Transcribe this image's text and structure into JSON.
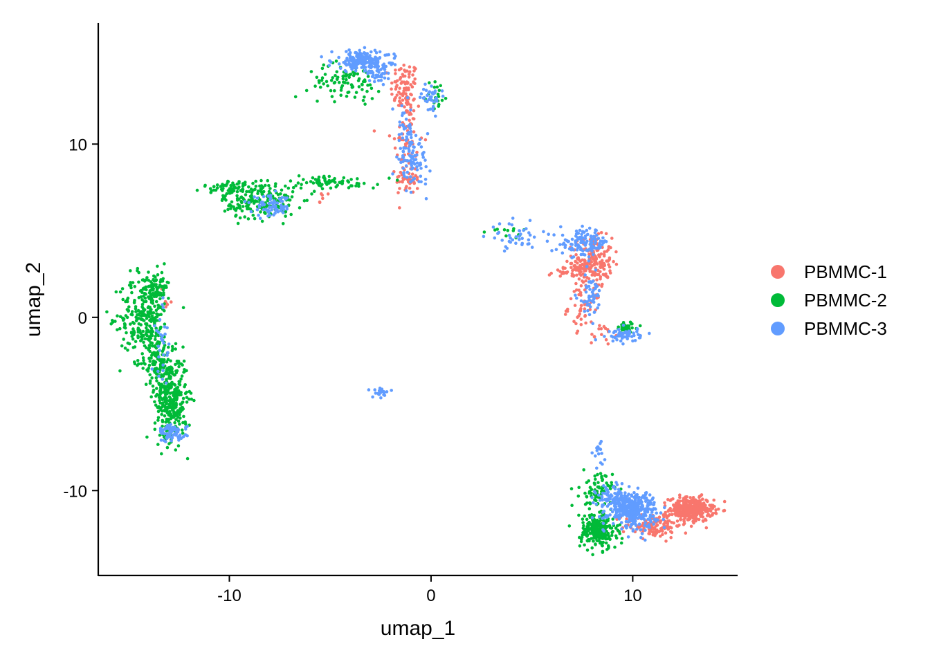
{
  "chart_data": {
    "type": "scatter",
    "title": "",
    "xlabel": "umap_1",
    "ylabel": "umap_2",
    "xlim": [
      -16.5,
      15.2
    ],
    "ylim": [
      -14.9,
      17.0
    ],
    "xticks": [
      {
        "value": -10,
        "label": "-10"
      },
      {
        "value": 0,
        "label": "0"
      },
      {
        "value": 10,
        "label": "10"
      }
    ],
    "yticks": [
      {
        "value": -10,
        "label": "-10"
      },
      {
        "value": 0,
        "label": "0"
      },
      {
        "value": 10,
        "label": "10"
      }
    ],
    "grid": false,
    "legend_position": "right",
    "series": [
      {
        "name": "PBMMC-1",
        "color": "#F8766D",
        "clusters": [
          {
            "cx": -1.3,
            "cy": 13.2,
            "sx": 0.35,
            "sy": 0.8,
            "n": 90
          },
          {
            "cx": -1.2,
            "cy": 10.0,
            "sx": 0.4,
            "sy": 1.6,
            "n": 60
          },
          {
            "cx": -1.1,
            "cy": 8.0,
            "sx": 0.3,
            "sy": 0.4,
            "n": 40
          },
          {
            "cx": 8.0,
            "cy": 3.2,
            "sx": 0.5,
            "sy": 0.7,
            "n": 180
          },
          {
            "cx": 7.0,
            "cy": 2.6,
            "sx": 0.6,
            "sy": 0.2,
            "n": 40
          },
          {
            "cx": 7.6,
            "cy": 0.6,
            "sx": 0.4,
            "sy": 0.6,
            "n": 50
          },
          {
            "cx": 12.9,
            "cy": -11.1,
            "sx": 0.55,
            "sy": 0.35,
            "n": 350
          },
          {
            "cx": 11.0,
            "cy": -12.0,
            "sx": 0.7,
            "sy": 0.35,
            "n": 130
          },
          {
            "cx": -13.1,
            "cy": 1.2,
            "sx": 0.2,
            "sy": 0.5,
            "n": 6
          },
          {
            "cx": -5.5,
            "cy": 7.0,
            "sx": 0.3,
            "sy": 0.3,
            "n": 6
          },
          {
            "cx": 8.5,
            "cy": -1.0,
            "sx": 0.3,
            "sy": 0.3,
            "n": 15
          }
        ]
      },
      {
        "name": "PBMMC-2",
        "color": "#00BA38",
        "clusters": [
          {
            "cx": -14.2,
            "cy": 0.0,
            "sx": 0.6,
            "sy": 1.3,
            "n": 280
          },
          {
            "cx": -13.5,
            "cy": 1.8,
            "sx": 0.25,
            "sy": 0.5,
            "n": 60
          },
          {
            "cx": -12.9,
            "cy": -4.7,
            "sx": 0.4,
            "sy": 1.2,
            "n": 360
          },
          {
            "cx": -13.6,
            "cy": -2.5,
            "sx": 0.3,
            "sy": 0.8,
            "n": 90
          },
          {
            "cx": -8.5,
            "cy": 6.6,
            "sx": 0.9,
            "sy": 0.45,
            "n": 180
          },
          {
            "cx": -9.5,
            "cy": 7.5,
            "sx": 0.9,
            "sy": 0.2,
            "n": 80
          },
          {
            "cx": -5.0,
            "cy": 7.8,
            "sx": 1.2,
            "sy": 0.2,
            "n": 70
          },
          {
            "cx": -4.3,
            "cy": 13.6,
            "sx": 0.9,
            "sy": 0.5,
            "n": 90
          },
          {
            "cx": 0.3,
            "cy": 12.8,
            "sx": 0.25,
            "sy": 0.5,
            "n": 20
          },
          {
            "cx": 8.3,
            "cy": -12.3,
            "sx": 0.45,
            "sy": 0.55,
            "n": 240
          },
          {
            "cx": 8.2,
            "cy": -10.0,
            "sx": 0.4,
            "sy": 0.5,
            "n": 70
          },
          {
            "cx": 9.7,
            "cy": -0.6,
            "sx": 0.3,
            "sy": 0.15,
            "n": 40
          },
          {
            "cx": 3.9,
            "cy": 5.0,
            "sx": 0.5,
            "sy": 0.2,
            "n": 12
          }
        ]
      },
      {
        "name": "PBMMC-3",
        "color": "#619CFF",
        "clusters": [
          {
            "cx": -3.5,
            "cy": 14.8,
            "sx": 0.7,
            "sy": 0.3,
            "n": 160
          },
          {
            "cx": -2.6,
            "cy": 14.3,
            "sx": 0.4,
            "sy": 0.4,
            "n": 60
          },
          {
            "cx": 0.0,
            "cy": 12.7,
            "sx": 0.25,
            "sy": 0.35,
            "n": 40
          },
          {
            "cx": -0.9,
            "cy": 8.9,
            "sx": 0.4,
            "sy": 0.6,
            "n": 80
          },
          {
            "cx": -1.3,
            "cy": 10.7,
            "sx": 0.2,
            "sy": 0.8,
            "n": 40
          },
          {
            "cx": -7.9,
            "cy": 6.4,
            "sx": 0.5,
            "sy": 0.3,
            "n": 70
          },
          {
            "cx": 7.6,
            "cy": 4.3,
            "sx": 0.6,
            "sy": 0.4,
            "n": 120
          },
          {
            "cx": 7.9,
            "cy": 1.2,
            "sx": 0.3,
            "sy": 0.6,
            "n": 50
          },
          {
            "cx": 4.2,
            "cy": 4.6,
            "sx": 0.6,
            "sy": 0.4,
            "n": 40
          },
          {
            "cx": 10.0,
            "cy": -11.1,
            "sx": 0.6,
            "sy": 0.5,
            "n": 320
          },
          {
            "cx": 9.2,
            "cy": -10.5,
            "sx": 0.5,
            "sy": 0.4,
            "n": 100
          },
          {
            "cx": 9.6,
            "cy": -1.0,
            "sx": 0.4,
            "sy": 0.2,
            "n": 60
          },
          {
            "cx": -12.8,
            "cy": -6.7,
            "sx": 0.35,
            "sy": 0.25,
            "n": 70
          },
          {
            "cx": -13.3,
            "cy": -1.5,
            "sx": 0.2,
            "sy": 1.2,
            "n": 30
          },
          {
            "cx": -2.5,
            "cy": -4.3,
            "sx": 0.3,
            "sy": 0.15,
            "n": 20
          },
          {
            "cx": 8.3,
            "cy": -8.0,
            "sx": 0.15,
            "sy": 0.4,
            "n": 15
          }
        ]
      }
    ]
  }
}
